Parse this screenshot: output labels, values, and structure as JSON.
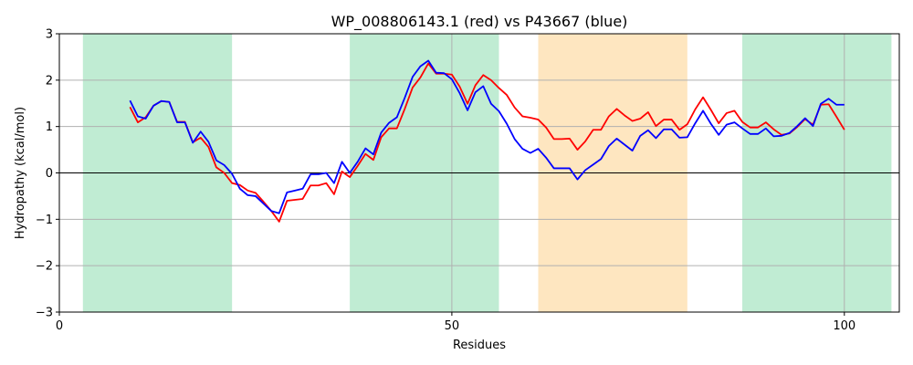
{
  "chart_data": {
    "type": "line",
    "title": "WP_008806143.1 (red) vs P43667 (blue)",
    "xlabel": "Residues",
    "ylabel": "Hydropathy (kcal/mol)",
    "xlim": [
      0,
      107
    ],
    "ylim": [
      -3,
      3
    ],
    "xticks": [
      0,
      50,
      100
    ],
    "yticks": [
      -3,
      -2,
      -1,
      0,
      1,
      2,
      3
    ],
    "grid": true,
    "zero_line": true,
    "regions": [
      {
        "start": 3,
        "end": 22,
        "color": "#c0ecd3"
      },
      {
        "start": 37,
        "end": 56,
        "color": "#c0ecd3"
      },
      {
        "start": 61,
        "end": 80,
        "color": "#fee6c0"
      },
      {
        "start": 87,
        "end": 106,
        "color": "#c0ecd3"
      }
    ],
    "series": [
      {
        "color": "#ff0000",
        "x": [
          9,
          10,
          11,
          12,
          13,
          14,
          15,
          16,
          17,
          18,
          19,
          20,
          21,
          22,
          23,
          24,
          25,
          26,
          27,
          28,
          29,
          30,
          31,
          32,
          33,
          34,
          35,
          36,
          37,
          38,
          39,
          40,
          41,
          42,
          43,
          44,
          45,
          46,
          47,
          48,
          49,
          50,
          51,
          52,
          53,
          54,
          55,
          56,
          57,
          58,
          59,
          60,
          61,
          62,
          63,
          64,
          65,
          66,
          67,
          68,
          69,
          70,
          71,
          72,
          73,
          74,
          75,
          76,
          77,
          78,
          79,
          80,
          81,
          82,
          83,
          84,
          85,
          86,
          87,
          88,
          89,
          90,
          91,
          92,
          93,
          94,
          95,
          96,
          97,
          98,
          99,
          100
        ],
        "y": [
          1.42,
          1.09,
          1.2,
          1.45,
          1.55,
          1.53,
          1.1,
          1.1,
          0.66,
          0.76,
          0.56,
          0.12,
          0.0,
          -0.22,
          -0.26,
          -0.38,
          -0.43,
          -0.62,
          -0.82,
          -1.05,
          -0.6,
          -0.58,
          -0.56,
          -0.27,
          -0.27,
          -0.22,
          -0.46,
          0.03,
          -0.09,
          0.15,
          0.41,
          0.28,
          0.77,
          0.96,
          0.96,
          1.38,
          1.84,
          2.06,
          2.36,
          2.14,
          2.14,
          2.12,
          1.86,
          1.49,
          1.89,
          2.11,
          2.0,
          1.83,
          1.68,
          1.41,
          1.22,
          1.19,
          1.15,
          0.98,
          0.73,
          0.73,
          0.74,
          0.5,
          0.68,
          0.93,
          0.93,
          1.22,
          1.38,
          1.24,
          1.12,
          1.17,
          1.31,
          1.01,
          1.15,
          1.15,
          0.93,
          1.05,
          1.37,
          1.63,
          1.36,
          1.07,
          1.29,
          1.34,
          1.1,
          0.98,
          0.98,
          1.09,
          0.94,
          0.82,
          0.85,
          0.99,
          1.16,
          1.04,
          1.47,
          1.48,
          1.21,
          0.93
        ]
      },
      {
        "color": "#0000ff",
        "x": [
          9,
          10,
          11,
          12,
          13,
          14,
          15,
          16,
          17,
          18,
          19,
          20,
          21,
          22,
          23,
          24,
          25,
          26,
          27,
          28,
          29,
          30,
          31,
          32,
          33,
          34,
          35,
          36,
          37,
          38,
          39,
          40,
          41,
          42,
          43,
          44,
          45,
          46,
          47,
          48,
          49,
          50,
          51,
          52,
          53,
          54,
          55,
          56,
          57,
          58,
          59,
          60,
          61,
          62,
          63,
          64,
          65,
          66,
          67,
          68,
          69,
          70,
          71,
          72,
          73,
          74,
          75,
          76,
          77,
          78,
          79,
          80,
          81,
          82,
          83,
          84,
          85,
          86,
          87,
          88,
          89,
          90,
          91,
          92,
          93,
          94,
          95,
          96,
          97,
          98,
          99,
          100
        ],
        "y": [
          1.56,
          1.22,
          1.17,
          1.45,
          1.55,
          1.53,
          1.09,
          1.09,
          0.65,
          0.89,
          0.67,
          0.27,
          0.17,
          -0.02,
          -0.34,
          -0.48,
          -0.5,
          -0.66,
          -0.82,
          -0.87,
          -0.42,
          -0.38,
          -0.34,
          -0.03,
          -0.03,
          0.0,
          -0.22,
          0.24,
          0.0,
          0.24,
          0.53,
          0.4,
          0.87,
          1.08,
          1.2,
          1.62,
          2.07,
          2.3,
          2.42,
          2.16,
          2.15,
          2.02,
          1.72,
          1.35,
          1.74,
          1.87,
          1.49,
          1.33,
          1.06,
          0.73,
          0.52,
          0.43,
          0.52,
          0.33,
          0.1,
          0.1,
          0.1,
          -0.14,
          0.06,
          0.18,
          0.3,
          0.58,
          0.74,
          0.61,
          0.48,
          0.8,
          0.92,
          0.75,
          0.94,
          0.94,
          0.76,
          0.77,
          1.07,
          1.34,
          1.06,
          0.82,
          1.04,
          1.09,
          0.96,
          0.84,
          0.84,
          0.96,
          0.79,
          0.8,
          0.86,
          1.01,
          1.18,
          1.01,
          1.49,
          1.6,
          1.47,
          1.47
        ]
      }
    ]
  }
}
